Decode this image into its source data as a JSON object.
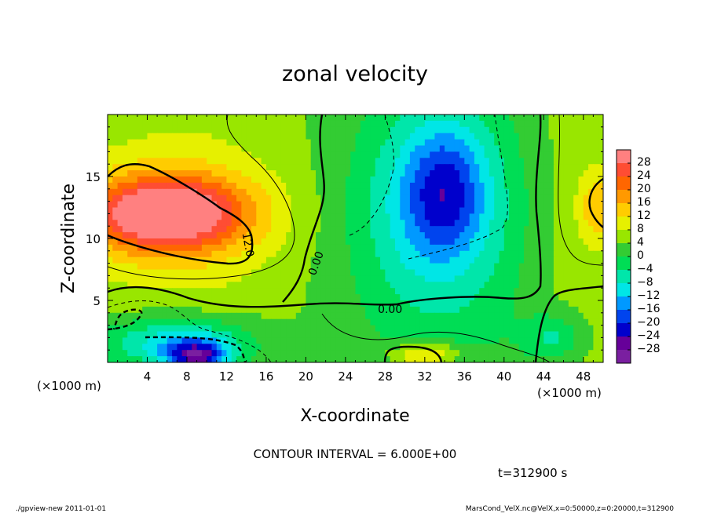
{
  "chart_data": {
    "type": "heatmap",
    "title": "zonal velocity",
    "xlabel": "X-coordinate",
    "ylabel": "Z-coordinate",
    "x_unit_left": "(×1000 m)",
    "x_unit_right": "(×1000 m)",
    "xlim": [
      0,
      50
    ],
    "ylim": [
      0,
      20
    ],
    "x_ticks": [
      4,
      8,
      12,
      16,
      20,
      24,
      28,
      32,
      36,
      40,
      44,
      48
    ],
    "y_ticks": [
      5,
      10,
      15
    ],
    "contour_interval_text": "CONTOUR INTERVAL = 6.000E+00",
    "contour_labels": [
      {
        "text": "12.0",
        "x": 14.2,
        "y": 9.5,
        "rotate": 80
      },
      {
        "text": "0.00",
        "x": 21.0,
        "y": 8.0,
        "rotate": -70
      },
      {
        "text": "0.00",
        "x": 28.5,
        "y": 4.3,
        "rotate": 0
      }
    ],
    "colorbar": {
      "levels": [
        28,
        24,
        20,
        16,
        12,
        8,
        4,
        0,
        -4,
        -8,
        -12,
        -16,
        -20,
        -24,
        -28
      ],
      "colors": [
        "#ff8080",
        "#ff4d33",
        "#ff6600",
        "#ff9900",
        "#ffcc00",
        "#e6f000",
        "#99e600",
        "#33cc33",
        "#00dd55",
        "#00e6aa",
        "#00e6e6",
        "#0099ff",
        "#0044ee",
        "#0000cc",
        "#660099",
        "#7a1fa0"
      ]
    },
    "blobs": [
      {
        "x": 0,
        "y": 10,
        "rx": 50,
        "ry": 20,
        "v": 5
      },
      {
        "x": 6,
        "y": 12,
        "rx": 10,
        "ry": 4,
        "v": 18
      },
      {
        "x": 6,
        "y": 12,
        "rx": 7,
        "ry": 2.6,
        "v": 22
      },
      {
        "x": 33,
        "y": 12,
        "rx": 8,
        "ry": 8,
        "v": -8
      },
      {
        "x": 34,
        "y": 14,
        "rx": 4,
        "ry": 5,
        "v": -11
      },
      {
        "x": 7,
        "y": 1.5,
        "rx": 8,
        "ry": 2.2,
        "v": -14
      },
      {
        "x": 9,
        "y": 0.5,
        "rx": 3,
        "ry": 1.2,
        "v": -20
      },
      {
        "x": 32,
        "y": 0.6,
        "rx": 3.5,
        "ry": 1,
        "v": 16
      },
      {
        "x": 49.5,
        "y": 12.5,
        "rx": 2,
        "ry": 3,
        "v": 14
      },
      {
        "x": 45,
        "y": 2,
        "rx": 3,
        "ry": 2,
        "v": -6
      }
    ],
    "footer_left": "./gpview-new  2011-01-01",
    "footer_right": "MarsCond_VelX.nc@VelX,x=0:50000,z=0:20000,t=312900",
    "time_label": "t=312900 s"
  }
}
